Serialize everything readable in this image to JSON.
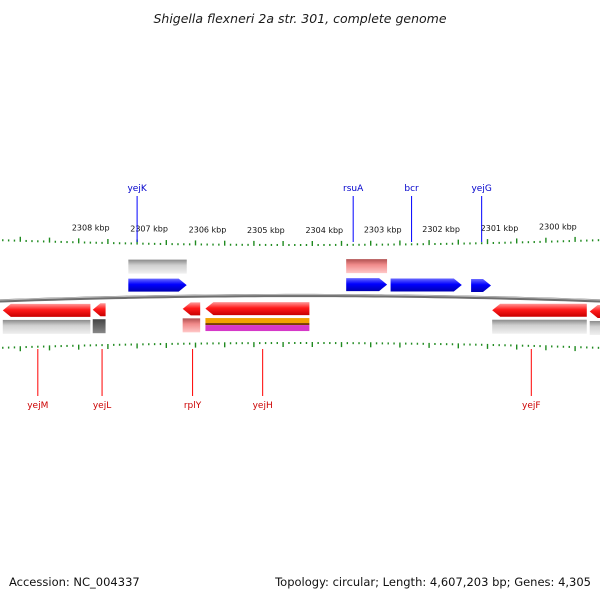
{
  "title": "Shigella flexneri 2a str. 301, complete genome",
  "footer": {
    "accession": "Accession: NC_004337",
    "summary": "Topology: circular; Length: 4,607,203 bp; Genes: 4,305"
  },
  "colors": {
    "plus_gene": "#0000ff",
    "minus_gene": "#ff0000",
    "plus_label": "#0000cc",
    "minus_label": "#cc0000",
    "ticks": "#1f8a1f",
    "backbone": "#777777"
  },
  "view": {
    "start_bp": 2299000,
    "end_bp": 2309300,
    "orientation": "descending"
  },
  "tick_labels": [
    {
      "bp": 2308000,
      "label": "2308 kbp"
    },
    {
      "bp": 2307000,
      "label": "2307 kbp"
    },
    {
      "bp": 2306000,
      "label": "2306 kbp"
    },
    {
      "bp": 2305000,
      "label": "2305 kbp"
    },
    {
      "bp": 2304000,
      "label": "2304 kbp"
    },
    {
      "bp": 2303000,
      "label": "2303 kbp"
    },
    {
      "bp": 2302000,
      "label": "2302 kbp"
    },
    {
      "bp": 2301000,
      "label": "2301 kbp"
    },
    {
      "bp": 2300000,
      "label": "2300 kbp"
    }
  ],
  "genes": [
    {
      "name": "yejK",
      "strand": "+",
      "start": 2307150,
      "end": 2306150,
      "label_bp": 2307000,
      "extra": "grey"
    },
    {
      "name": "rsuA",
      "strand": "+",
      "start": 2303420,
      "end": 2302720,
      "label_bp": 2303300,
      "extra": "rose"
    },
    {
      "name": "bcr",
      "strand": "+",
      "start": 2302660,
      "end": 2301440,
      "label_bp": 2302300
    },
    {
      "name": "yejG",
      "strand": "+",
      "start": 2301280,
      "end": 2300940,
      "label_bp": 2301100
    },
    {
      "name": "yejM",
      "strand": "-",
      "start": 2309300,
      "end": 2307800,
      "label_bp": 2308700,
      "extra": "grey"
    },
    {
      "name": "yejL",
      "strand": "-",
      "start": 2307760,
      "end": 2307540,
      "label_bp": 2307600,
      "extra": "darkgrey"
    },
    {
      "name": "rplY",
      "strand": "-",
      "start": 2306220,
      "end": 2305920,
      "label_bp": 2306050,
      "extra": "rose"
    },
    {
      "name": "yejH",
      "strand": "-",
      "start": 2305830,
      "end": 2304050,
      "label_bp": 2304850,
      "extra": "striped"
    },
    {
      "name": "yejF",
      "strand": "-",
      "start": 2300920,
      "end": 2299300,
      "label_bp": 2300250,
      "extra": "grey"
    },
    {
      "name": "yejF",
      "strand": "-",
      "start": 2299250,
      "end": 2298400,
      "label_bp": null,
      "extra": "grey"
    }
  ]
}
